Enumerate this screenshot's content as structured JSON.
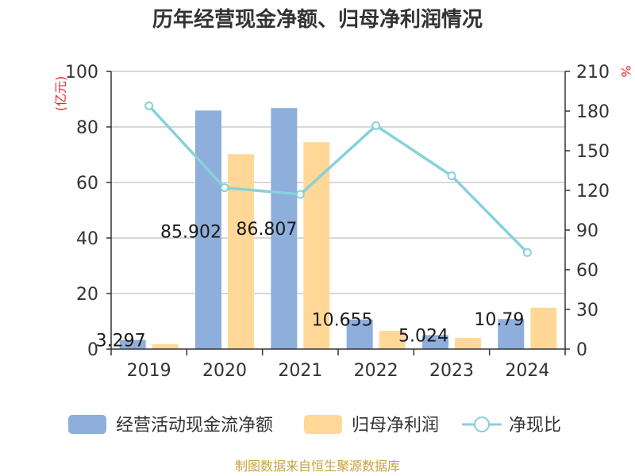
{
  "chart_data": {
    "type": "bar",
    "title": "历年经营现金净额、归母净利润情况",
    "categories": [
      "2019",
      "2020",
      "2021",
      "2022",
      "2023",
      "2024"
    ],
    "series": [
      {
        "name": "经营活动现金流净额",
        "type": "bar",
        "axis": "left",
        "color": "#8eaedb",
        "values": [
          3.297,
          85.902,
          86.807,
          10.655,
          5.024,
          10.79
        ],
        "labels": [
          "3.297",
          "85.902",
          "86.807",
          "10.655",
          "5.024",
          "10.79"
        ]
      },
      {
        "name": "归母净利润",
        "type": "bar",
        "axis": "left",
        "color": "#ffd898",
        "values": [
          1.8,
          70.2,
          74.5,
          6.6,
          4.0,
          14.9
        ]
      },
      {
        "name": "净现比",
        "type": "line",
        "axis": "right",
        "color": "#88d1d8",
        "values": [
          184,
          122,
          117,
          169,
          131,
          73
        ]
      }
    ],
    "y_left": {
      "unit": "(亿元)",
      "ylim": [
        0,
        100
      ],
      "ticks": [
        "0",
        "20",
        "40",
        "60",
        "80",
        "100"
      ]
    },
    "y_right": {
      "unit": "%",
      "ylim": [
        0,
        210
      ],
      "ticks": [
        "0",
        "30",
        "60",
        "90",
        "120",
        "150",
        "180",
        "210"
      ]
    },
    "grid": true,
    "legend_position": "bottom"
  },
  "footer": "制图数据来自恒生聚源数据库"
}
